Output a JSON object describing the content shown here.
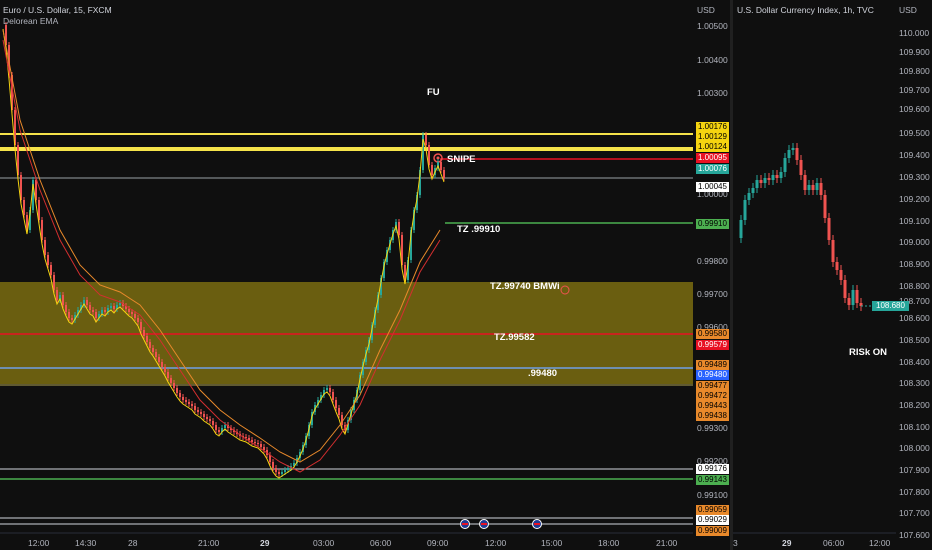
{
  "left_chart": {
    "title": "Euro / U.S. Dollar, 15, FXCM",
    "indicator": "Delorean EMA",
    "currency": "USD",
    "axis_ticks": [
      "1.00500",
      "1.00400",
      "1.00300",
      "1.00000",
      "0.99800",
      "0.99700",
      "0.99600",
      "0.99300",
      "0.99200",
      "0.99100"
    ],
    "price_tags": [
      {
        "text": "1.00176",
        "bg": "#f5d410",
        "fg": "#000000"
      },
      {
        "text": "1.00129",
        "bg": "#f5d410",
        "fg": "#000000"
      },
      {
        "text": "1.00124",
        "bg": "#f5d410",
        "fg": "#000000"
      },
      {
        "text": "1.00095",
        "bg": "#e81123",
        "fg": "#ffffff"
      },
      {
        "text": "1.00076",
        "bg": "#26a69a",
        "fg": "#ffffff"
      },
      {
        "text": "1.00045",
        "bg": "#ffffff",
        "fg": "#000000"
      },
      {
        "text": "0.99910",
        "bg": "#4caf50",
        "fg": "#000000"
      },
      {
        "text": "0.99580",
        "bg": "#e8892b",
        "fg": "#000000"
      },
      {
        "text": "0.99579",
        "bg": "#e81123",
        "fg": "#ffffff"
      },
      {
        "text": "0.99489",
        "bg": "#e8892b",
        "fg": "#000000"
      },
      {
        "text": "0.99480",
        "bg": "#2962ff",
        "fg": "#ffffff"
      },
      {
        "text": "0.99477",
        "bg": "#e8892b",
        "fg": "#000000"
      },
      {
        "text": "0.99472",
        "bg": "#e8892b",
        "fg": "#000000"
      },
      {
        "text": "0.99443",
        "bg": "#e8892b",
        "fg": "#000000"
      },
      {
        "text": "0.99438",
        "bg": "#e8892b",
        "fg": "#000000"
      },
      {
        "text": "0.99176",
        "bg": "#ffffff",
        "fg": "#000000"
      },
      {
        "text": "0.99143",
        "bg": "#4caf50",
        "fg": "#000000"
      },
      {
        "text": "0.99059",
        "bg": "#e8892b",
        "fg": "#000000"
      },
      {
        "text": "0.99029",
        "bg": "#ffffff",
        "fg": "#000000"
      },
      {
        "text": "0.99009",
        "bg": "#e8892b",
        "fg": "#000000"
      }
    ],
    "annotations": {
      "fu": "FU",
      "snipe": "SNIPE",
      "tz1": "TZ .99910",
      "tz2": "TZ.99740 BMWi",
      "tz3": "TZ.99582",
      "tz4": ".99480"
    },
    "time_labels": [
      "12:00",
      "14:30",
      "28",
      "21:00",
      "29",
      "03:00",
      "06:00",
      "09:00",
      "12:00",
      "15:00",
      "18:00",
      "21:00"
    ]
  },
  "right_chart": {
    "title": "U.S. Dollar Currency Index, 1h, TVC",
    "currency": "USD",
    "axis_ticks": [
      "110.000",
      "109.900",
      "109.800",
      "109.700",
      "109.600",
      "109.500",
      "109.400",
      "109.300",
      "109.200",
      "109.100",
      "109.000",
      "108.900",
      "108.800",
      "108.700",
      "108.600",
      "108.500",
      "108.400",
      "108.300",
      "108.200",
      "108.100",
      "108.000",
      "107.900",
      "107.800",
      "107.700",
      "107.600"
    ],
    "price_tag": {
      "text": "108.680",
      "bg": "#26a69a",
      "fg": "#ffffff"
    },
    "annotation": "RISk ON",
    "time_labels": [
      "3",
      "29",
      "06:00",
      "12:00"
    ]
  },
  "colors": {
    "up": "#26a69a",
    "down": "#ef5350",
    "zone": "#8a7a12",
    "yellow_line": "#f5e34a",
    "red_line": "#e81123",
    "blue_line": "#2962ff",
    "green_line": "#4caf50",
    "ema_fast": "#f5d410",
    "ema_slow": "#e8892b"
  }
}
